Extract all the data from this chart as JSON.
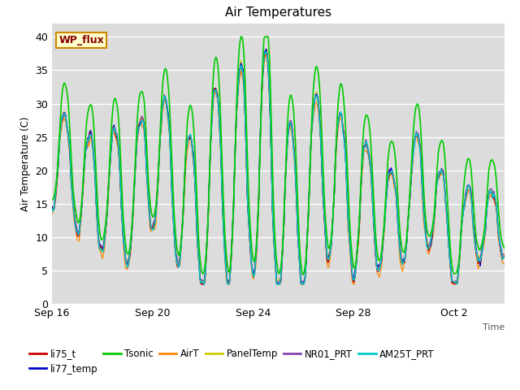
{
  "title": "Air Temperatures",
  "xlabel": "Time",
  "ylabel": "Air Temperature (C)",
  "ylim": [
    0,
    42
  ],
  "yticks": [
    0,
    5,
    10,
    15,
    20,
    25,
    30,
    35,
    40
  ],
  "xtick_labels": [
    "Sep 16",
    "Sep 20",
    "Sep 24",
    "Sep 28",
    "Oct 2"
  ],
  "xtick_positions": [
    0,
    4,
    8,
    12,
    16
  ],
  "n_days": 18,
  "background_color": "#dcdcdc",
  "series_colors": {
    "li75_t": "#cc0000",
    "li77_temp": "#0000cc",
    "Tsonic": "#00cc00",
    "AirT": "#ff8800",
    "PanelTemp": "#cccc00",
    "NR01_PRT": "#8844aa",
    "AM25T_PRT": "#00cccc"
  },
  "legend_box_facecolor": "#ffffcc",
  "legend_box_edgecolor": "#cc8800",
  "legend_text_color": "#880000",
  "annotation_text": "WP_flux",
  "seed": 7
}
